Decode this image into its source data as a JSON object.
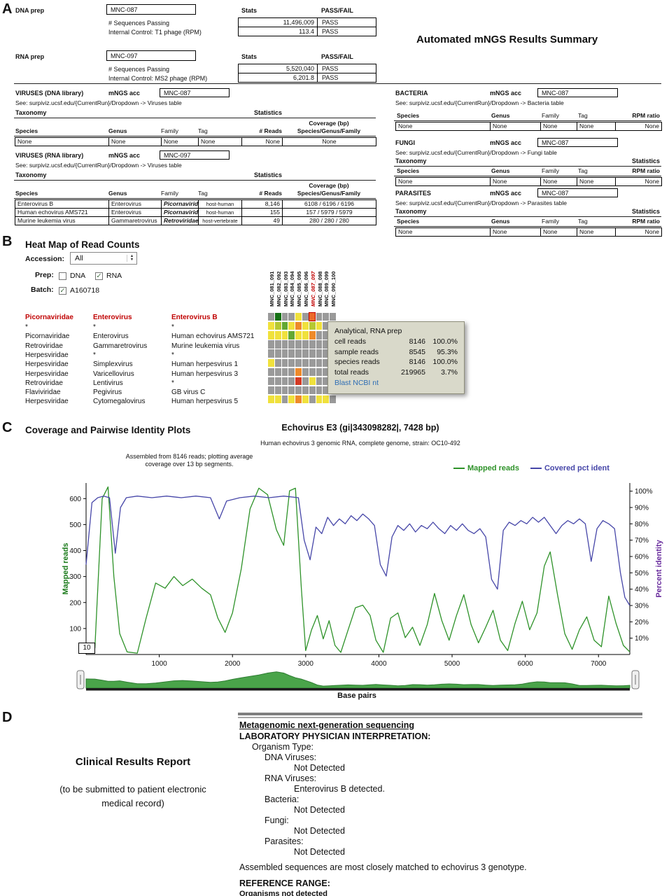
{
  "colors": {
    "accent_red": "#c00000",
    "link_blue": "#2e6db4",
    "mapped_green": "#2e9229",
    "identity_navy": "#4646a8",
    "identity_purple": "#6a2d9e"
  },
  "panelA": {
    "label": "A",
    "summary_title": "Automated mNGS Results Summary",
    "stats_header": "Stats",
    "passfail_header": "PASS/FAIL",
    "labels": {
      "mngs_acc": "mNGS acc",
      "taxonomy": "Taxonomy",
      "statistics": "Statistics",
      "coverage": "Coverage (bp)"
    },
    "preps": [
      {
        "name": "DNA prep",
        "acc": "MNC-087",
        "rows": [
          [
            "# Sequences Passing",
            "11,496,009",
            "PASS"
          ],
          [
            "Internal Control: T1 phage (RPM)",
            "113.4",
            "PASS"
          ]
        ]
      },
      {
        "name": "RNA prep",
        "acc": "MNC-097",
        "rows": [
          [
            "# Sequences Passing",
            "5,520,040",
            "PASS"
          ],
          [
            "Internal Control: MS2 phage (RPM)",
            "6,201.8",
            "PASS"
          ]
        ]
      }
    ],
    "virus_tables": [
      {
        "title": "VIRUSES (DNA library)",
        "acc": "MNC-087",
        "see": "See: surpiviz.ucsf.edu/{CurrentRun}/Dropdown -> Viruses table",
        "headers": [
          "Species",
          "Genus",
          "Family",
          "Tag",
          "# Reads",
          "Species/Genus/Family"
        ],
        "rows": [
          [
            "None",
            "None",
            "None",
            "None",
            "None",
            "None"
          ]
        ]
      },
      {
        "title": "VIRUSES (RNA library)",
        "acc": "MNC-097",
        "see": "See: surpiviz.ucsf.edu/{CurrentRun}/Dropdown -> Viruses table",
        "headers": [
          "Species",
          "Genus",
          "Family",
          "Tag",
          "# Reads",
          "Species/Genus/Family"
        ],
        "rows": [
          [
            "Enterovirus B",
            "Enterovirus",
            "Picornaviridae",
            "host-human",
            "8,146",
            "6108 / 6196 / 6196"
          ],
          [
            "Human echovirus AMS721",
            "Enterovirus",
            "Picornaviridae",
            "host-human",
            "155",
            "157 / 5979 / 5979"
          ],
          [
            "Murine leukemia virus",
            "Gammaretrovirus",
            "Retroviridae",
            "host-vertebrate",
            "49",
            "280 / 280 / 280"
          ]
        ]
      }
    ],
    "side_tables": [
      {
        "title": "BACTERIA",
        "acc": "MNC-087",
        "show_tax_labels": false,
        "see": "See: surpiviz.ucsf.edu/{CurrentRun}/Dropdown -> Bacteria table",
        "headers": [
          "Species",
          "Genus",
          "Family",
          "Tag",
          "RPM ratio"
        ],
        "rows": [
          [
            "None",
            "None",
            "None",
            "None",
            "None"
          ]
        ]
      },
      {
        "title": "FUNGI",
        "acc": "MNC-087",
        "show_tax_labels": true,
        "see": "See: surpiviz.ucsf.edu/{CurrentRun}/Dropdown -> Fungi table",
        "headers": [
          "Species",
          "Genus",
          "Family",
          "Tag",
          "RPM ratio"
        ],
        "rows": [
          [
            "None",
            "None",
            "None",
            "None",
            "None"
          ]
        ]
      },
      {
        "title": "PARASITES",
        "acc": "MNC-087",
        "show_tax_labels": true,
        "see": "See: surpiviz.ucsf.edu/{CurrentRun}/Dropdown -> Parasites table",
        "headers": [
          "Species",
          "Genus",
          "Family",
          "Tag",
          "RPM ratio"
        ],
        "rows": [
          [
            "None",
            "None",
            "None",
            "None",
            "None"
          ]
        ]
      }
    ]
  },
  "panelB": {
    "label": "B",
    "title": "Heat Map of Read Counts",
    "accession_label": "Accession:",
    "accession_value": "All",
    "prep_label": "Prep:",
    "prep_options": [
      {
        "label": "DNA",
        "checked": false
      },
      {
        "label": "RNA",
        "checked": true
      }
    ],
    "batch_label": "Batch:",
    "batch_value": "A160718",
    "batch_checked": true,
    "columns": [
      "MNC_081_091",
      "MNC_082_092",
      "MNC_083_093",
      "MNC_084_094",
      "MNC_085_095",
      "MNC_086_096",
      "MNC_087_097",
      "MNC_088_098",
      "MNC_089_099",
      "MNC_090_100"
    ],
    "highlight_column": "MNC_087_097",
    "tax_headers": [
      "Picornaviridae",
      "Enterovirus",
      "Enterovirus B"
    ],
    "tax_rows": [
      [
        "*",
        "*",
        "*"
      ],
      [
        "Picornaviridae",
        "Enterovirus",
        "Human echovirus AMS721"
      ],
      [
        "Retroviridae",
        "Gammaretrovirus",
        "Murine leukemia virus"
      ],
      [
        "Herpesviridae",
        "*",
        "*"
      ],
      [
        "Herpesviridae",
        "Simplexvirus",
        "Human herpesvirus 1"
      ],
      [
        "Herpesviridae",
        "Varicellovirus",
        "Human herpesvirus 3"
      ],
      [
        "Retroviridae",
        "Lentivirus",
        "*"
      ],
      [
        "Flaviviridae",
        "Pegivirus",
        "GB virus C"
      ],
      [
        "Herpesviridae",
        "Cytomegalovirus",
        "Human herpesvirus 5"
      ]
    ],
    "heatmap_palette": {
      "g": "#9a9a9a",
      "dg": "#157015",
      "gr": "#63a832",
      "yg": "#b6c832",
      "y": "#f0e13c",
      "o": "#ee8a2a",
      "r": "#d43a24",
      "sel": "#ec6a2a"
    },
    "heatmap_grid": [
      [
        "g",
        "dg",
        "g",
        "g",
        "y",
        "g",
        "sel",
        "g",
        "g",
        "g"
      ],
      [
        "y",
        "yg",
        "gr",
        "y",
        "o",
        "y",
        "yg",
        "y",
        "g",
        "g"
      ],
      [
        "y",
        "y",
        "y",
        "gr",
        "y",
        "y",
        "o",
        "g",
        "g",
        "g"
      ],
      [
        "g",
        "g",
        "g",
        "g",
        "g",
        "g",
        "g",
        "g",
        "g",
        "g"
      ],
      [
        "g",
        "g",
        "g",
        "g",
        "g",
        "g",
        "g",
        "g",
        "g",
        "g"
      ],
      [
        "y",
        "g",
        "g",
        "g",
        "g",
        "g",
        "g",
        "g",
        "g",
        "g"
      ],
      [
        "g",
        "g",
        "g",
        "g",
        "o",
        "g",
        "g",
        "g",
        "g",
        "g"
      ],
      [
        "g",
        "g",
        "g",
        "g",
        "r",
        "g",
        "y",
        "g",
        "g",
        "g"
      ],
      [
        "g",
        "g",
        "g",
        "g",
        "g",
        "g",
        "g",
        "g",
        "g",
        "g"
      ],
      [
        "y",
        "y",
        "g",
        "y",
        "o",
        "y",
        "g",
        "y",
        "y",
        "g"
      ]
    ],
    "tooltip": {
      "title": "Analytical, RNA prep",
      "rows": [
        [
          "cell reads",
          "8146",
          "100.0%"
        ],
        [
          "sample reads",
          "8545",
          "95.3%"
        ],
        [
          "species reads",
          "8146",
          "100.0%"
        ],
        [
          "total reads",
          "219965",
          "3.7%"
        ]
      ],
      "link": "Blast NCBI nt"
    }
  },
  "panelC": {
    "label": "C",
    "title": "Coverage and Pairwise Identity Plots",
    "chart_title": "Echovirus E3 (gi|343098282|, 7428 bp)",
    "chart_subtitle": "Human echovirus 3 genomic RNA, complete genome, strain: OC10-492",
    "annotation": "Assembled from 8146 reads; plotting average coverage over 13 bp segments.",
    "legend": [
      {
        "label": "Mapped reads",
        "color": "#2e9229"
      },
      {
        "label": "Covered pct ident",
        "color": "#4646a8"
      }
    ],
    "y_left_label": "Mapped reads",
    "y_right_label": "Percent identity",
    "x_label": "Base pairs",
    "segment_box": "10"
  },
  "chart_data": {
    "type": "line",
    "title": "Echovirus E3 (gi|343098282|, 7428 bp)",
    "subtitle": "Human echovirus 3 genomic RNA, complete genome, strain: OC10-492",
    "xlabel": "Base pairs",
    "ylabel_left": "Mapped reads",
    "ylabel_right": "Percent identity",
    "xlim": [
      0,
      7428
    ],
    "ylim_left": [
      0,
      660
    ],
    "ylim_right": [
      0,
      105
    ],
    "x_ticks": [
      1000,
      2000,
      3000,
      4000,
      5000,
      6000,
      7000
    ],
    "y_left_ticks": [
      100,
      200,
      300,
      400,
      500,
      600
    ],
    "y_right_ticks": [
      "10%",
      "20%",
      "30%",
      "40%",
      "50%",
      "60%",
      "70%",
      "80%",
      "90%",
      "100%"
    ],
    "grid": false,
    "legend_position": "top-right",
    "series": [
      {
        "name": "Mapped reads",
        "axis": "left",
        "color": "#2e9229",
        "points": [
          [
            0,
            8
          ],
          [
            120,
            25
          ],
          [
            220,
            600
          ],
          [
            300,
            645
          ],
          [
            380,
            300
          ],
          [
            460,
            80
          ],
          [
            560,
            10
          ],
          [
            700,
            5
          ],
          [
            820,
            140
          ],
          [
            950,
            275
          ],
          [
            1080,
            255
          ],
          [
            1200,
            300
          ],
          [
            1320,
            265
          ],
          [
            1450,
            290
          ],
          [
            1580,
            255
          ],
          [
            1700,
            230
          ],
          [
            1800,
            140
          ],
          [
            1900,
            85
          ],
          [
            2000,
            160
          ],
          [
            2120,
            330
          ],
          [
            2240,
            560
          ],
          [
            2360,
            640
          ],
          [
            2480,
            615
          ],
          [
            2600,
            480
          ],
          [
            2700,
            420
          ],
          [
            2780,
            630
          ],
          [
            2860,
            640
          ],
          [
            2940,
            260
          ],
          [
            3000,
            15
          ],
          [
            3080,
            95
          ],
          [
            3160,
            150
          ],
          [
            3240,
            60
          ],
          [
            3320,
            130
          ],
          [
            3400,
            35
          ],
          [
            3480,
            8
          ],
          [
            3580,
            95
          ],
          [
            3680,
            180
          ],
          [
            3780,
            190
          ],
          [
            3880,
            150
          ],
          [
            3960,
            55
          ],
          [
            4060,
            8
          ],
          [
            4160,
            140
          ],
          [
            4260,
            160
          ],
          [
            4360,
            65
          ],
          [
            4460,
            105
          ],
          [
            4560,
            35
          ],
          [
            4660,
            115
          ],
          [
            4760,
            235
          ],
          [
            4860,
            130
          ],
          [
            4960,
            55
          ],
          [
            5060,
            150
          ],
          [
            5160,
            230
          ],
          [
            5260,
            115
          ],
          [
            5360,
            45
          ],
          [
            5460,
            105
          ],
          [
            5560,
            170
          ],
          [
            5660,
            55
          ],
          [
            5760,
            15
          ],
          [
            5860,
            120
          ],
          [
            5960,
            205
          ],
          [
            6060,
            95
          ],
          [
            6160,
            160
          ],
          [
            6260,
            340
          ],
          [
            6340,
            395
          ],
          [
            6440,
            230
          ],
          [
            6540,
            80
          ],
          [
            6640,
            20
          ],
          [
            6740,
            95
          ],
          [
            6840,
            145
          ],
          [
            6940,
            55
          ],
          [
            7040,
            30
          ],
          [
            7140,
            225
          ],
          [
            7240,
            120
          ],
          [
            7340,
            35
          ],
          [
            7428,
            10
          ]
        ]
      },
      {
        "name": "Covered pct ident",
        "axis": "right",
        "color": "#4646a8",
        "points": [
          [
            0,
            55
          ],
          [
            80,
            93
          ],
          [
            160,
            96
          ],
          [
            240,
            97
          ],
          [
            320,
            96
          ],
          [
            400,
            62
          ],
          [
            470,
            90
          ],
          [
            550,
            96
          ],
          [
            700,
            97
          ],
          [
            900,
            96
          ],
          [
            1100,
            97
          ],
          [
            1300,
            96
          ],
          [
            1500,
            97
          ],
          [
            1700,
            96
          ],
          [
            1820,
            83
          ],
          [
            1920,
            94
          ],
          [
            2100,
            96
          ],
          [
            2300,
            97
          ],
          [
            2500,
            96
          ],
          [
            2700,
            97
          ],
          [
            2900,
            96
          ],
          [
            2980,
            70
          ],
          [
            3060,
            58
          ],
          [
            3140,
            78
          ],
          [
            3220,
            74
          ],
          [
            3300,
            84
          ],
          [
            3380,
            79
          ],
          [
            3460,
            83
          ],
          [
            3540,
            80
          ],
          [
            3620,
            85
          ],
          [
            3700,
            82
          ],
          [
            3780,
            86
          ],
          [
            3860,
            83
          ],
          [
            3940,
            79
          ],
          [
            4020,
            55
          ],
          [
            4100,
            48
          ],
          [
            4180,
            72
          ],
          [
            4260,
            79
          ],
          [
            4340,
            76
          ],
          [
            4420,
            80
          ],
          [
            4500,
            75
          ],
          [
            4580,
            79
          ],
          [
            4660,
            77
          ],
          [
            4740,
            81
          ],
          [
            4820,
            77
          ],
          [
            4900,
            74
          ],
          [
            4980,
            79
          ],
          [
            5060,
            76
          ],
          [
            5140,
            80
          ],
          [
            5220,
            76
          ],
          [
            5300,
            74
          ],
          [
            5380,
            77
          ],
          [
            5460,
            72
          ],
          [
            5540,
            46
          ],
          [
            5620,
            40
          ],
          [
            5700,
            76
          ],
          [
            5780,
            81
          ],
          [
            5860,
            79
          ],
          [
            5940,
            82
          ],
          [
            6020,
            80
          ],
          [
            6100,
            84
          ],
          [
            6180,
            81
          ],
          [
            6260,
            84
          ],
          [
            6340,
            79
          ],
          [
            6420,
            74
          ],
          [
            6500,
            79
          ],
          [
            6580,
            82
          ],
          [
            6660,
            80
          ],
          [
            6740,
            83
          ],
          [
            6820,
            80
          ],
          [
            6900,
            57
          ],
          [
            6980,
            77
          ],
          [
            7060,
            82
          ],
          [
            7140,
            80
          ],
          [
            7220,
            77
          ],
          [
            7300,
            50
          ],
          [
            7360,
            35
          ],
          [
            7428,
            30
          ]
        ]
      }
    ]
  },
  "panelD": {
    "label": "D",
    "report_title": "Clinical Results Report",
    "report_subtitle": "(to be submitted to patient electronic medical record)",
    "section_title": "Metagenomic next-generation sequencing",
    "interpretation_title": "LABORATORY PHYSICIAN INTERPRETATION:",
    "organism_type_label": "Organism Type:",
    "items": [
      {
        "label": "DNA Viruses:",
        "value": "Not Detected"
      },
      {
        "label": "RNA Viruses:",
        "value": "Enterovirus B detected."
      },
      {
        "label": "Bacteria:",
        "value": "Not Detected"
      },
      {
        "label": "Fungi:",
        "value": "Not Detected"
      },
      {
        "label": "Parasites:",
        "value": "Not Detected"
      }
    ],
    "assembly_note": "Assembled sequences are most closely matched to echovirus 3 genotype.",
    "reference_range_title": "REFERENCE RANGE:",
    "reference_range_value": "Organisms not detected"
  }
}
